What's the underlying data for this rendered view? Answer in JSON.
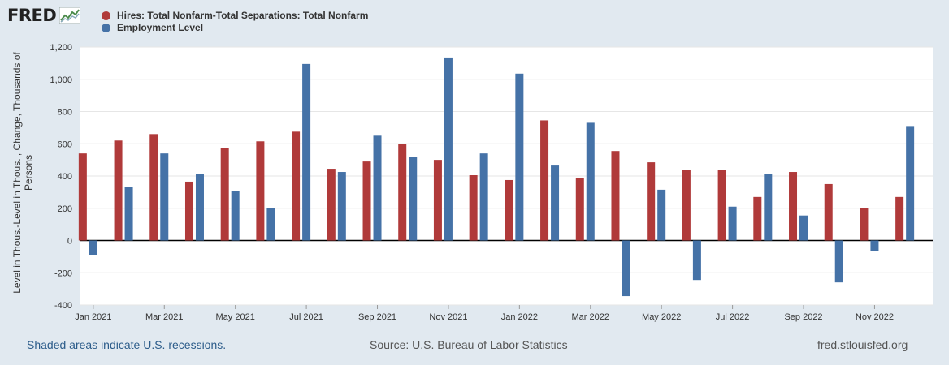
{
  "logo": {
    "text": "FRED",
    "icon": "fred-chart-icon"
  },
  "legend": [
    {
      "label": "Hires: Total Nonfarm-Total Separations: Total Nonfarm",
      "color": "#b03a3a"
    },
    {
      "label": "Employment Level",
      "color": "#4572a7"
    }
  ],
  "footer": {
    "recession_note": "Shaded areas indicate U.S. recessions.",
    "source": "Source: U.S. Bureau of Labor Statistics",
    "url": "fred.stlouisfed.org"
  },
  "chart_data": {
    "type": "bar",
    "ylabel": [
      "Level in Thous.-Level in Thous. , Change, Thousands of",
      "Persons"
    ],
    "ylim": [
      -400,
      1200
    ],
    "yticks": [
      -400,
      -200,
      0,
      200,
      400,
      600,
      800,
      1000,
      1200
    ],
    "ytick_labels": [
      "-400",
      "-200",
      "0",
      "200",
      "400",
      "600",
      "800",
      "1,000",
      "1,200"
    ],
    "categories": [
      "Jan 2021",
      "Feb 2021",
      "Mar 2021",
      "Apr 2021",
      "May 2021",
      "Jun 2021",
      "Jul 2021",
      "Aug 2021",
      "Sep 2021",
      "Oct 2021",
      "Nov 2021",
      "Dec 2021",
      "Jan 2022",
      "Feb 2022",
      "Mar 2022",
      "Apr 2022",
      "May 2022",
      "Jun 2022",
      "Jul 2022",
      "Aug 2022",
      "Sep 2022",
      "Oct 2022",
      "Nov 2022",
      "Dec 2022"
    ],
    "xtick_labels": [
      {
        "index": 0,
        "label": "Jan 2021"
      },
      {
        "index": 2,
        "label": "Mar 2021"
      },
      {
        "index": 4,
        "label": "May 2021"
      },
      {
        "index": 6,
        "label": "Jul 2021"
      },
      {
        "index": 8,
        "label": "Sep 2021"
      },
      {
        "index": 10,
        "label": "Nov 2021"
      },
      {
        "index": 12,
        "label": "Jan 2022"
      },
      {
        "index": 14,
        "label": "Mar 2022"
      },
      {
        "index": 16,
        "label": "May 2022"
      },
      {
        "index": 18,
        "label": "Jul 2022"
      },
      {
        "index": 20,
        "label": "Sep 2022"
      },
      {
        "index": 22,
        "label": "Nov 2022"
      }
    ],
    "series": [
      {
        "name": "Hires: Total Nonfarm-Total Separations: Total Nonfarm",
        "color": "#b03a3a",
        "values": [
          540,
          620,
          660,
          365,
          575,
          615,
          675,
          445,
          490,
          600,
          500,
          405,
          375,
          745,
          390,
          555,
          485,
          440,
          440,
          270,
          425,
          350,
          200,
          270
        ]
      },
      {
        "name": "Employment Level",
        "color": "#4572a7",
        "values": [
          -90,
          330,
          540,
          415,
          305,
          200,
          1095,
          425,
          650,
          520,
          1135,
          540,
          1035,
          465,
          730,
          -345,
          315,
          -245,
          210,
          415,
          155,
          -260,
          -65,
          710
        ]
      }
    ]
  }
}
